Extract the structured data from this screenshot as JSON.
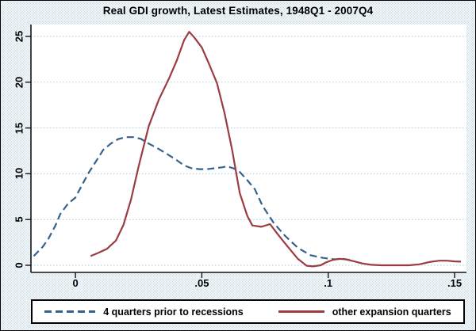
{
  "chart_data": {
    "type": "line",
    "title": "Real GDI growth, Latest Estimates, 1948Q1 - 2007Q4",
    "xlabel": "",
    "ylabel": "",
    "grid": "horizontal-dotted",
    "legend_position": "bottom-box",
    "xlim": [
      -0.0176,
      0.1547
    ],
    "ylim": [
      -0.78,
      26.3
    ],
    "xticks": [
      {
        "value": 0.0,
        "label": "0"
      },
      {
        "value": 0.05,
        "label": ".05"
      },
      {
        "value": 0.1,
        "label": ".1"
      },
      {
        "value": 0.15,
        "label": ".15"
      }
    ],
    "yticks": [
      {
        "value": 0,
        "label": "0"
      },
      {
        "value": 5,
        "label": "5"
      },
      {
        "value": 10,
        "label": "10"
      },
      {
        "value": 15,
        "label": "15"
      },
      {
        "value": 20,
        "label": "20"
      },
      {
        "value": 25,
        "label": "25"
      }
    ],
    "series": [
      {
        "name": "4 quarters prior to recessions",
        "style": "dashed",
        "color": "#35618c",
        "points": [
          [
            -0.0165,
            1.0
          ],
          [
            -0.013,
            2.0
          ],
          [
            -0.0107,
            2.9
          ],
          [
            -0.008,
            4.3
          ],
          [
            -0.006,
            5.6
          ],
          [
            -0.003,
            6.7
          ],
          [
            0.0,
            7.4
          ],
          [
            0.0025,
            8.7
          ],
          [
            0.005,
            10.0
          ],
          [
            0.008,
            11.3
          ],
          [
            0.011,
            12.6
          ],
          [
            0.014,
            13.3
          ],
          [
            0.017,
            13.8
          ],
          [
            0.02,
            14.0
          ],
          [
            0.023,
            14.0
          ],
          [
            0.026,
            13.8
          ],
          [
            0.029,
            13.3
          ],
          [
            0.033,
            12.7
          ],
          [
            0.036,
            12.2
          ],
          [
            0.04,
            11.5
          ],
          [
            0.043,
            10.9
          ],
          [
            0.046,
            10.6
          ],
          [
            0.049,
            10.5
          ],
          [
            0.052,
            10.5
          ],
          [
            0.055,
            10.6
          ],
          [
            0.058,
            10.7
          ],
          [
            0.06,
            10.8
          ],
          [
            0.0625,
            10.6
          ],
          [
            0.065,
            10.2
          ],
          [
            0.068,
            9.3
          ],
          [
            0.071,
            8.3
          ],
          [
            0.074,
            6.5
          ],
          [
            0.0785,
            4.6
          ],
          [
            0.083,
            3.2
          ],
          [
            0.088,
            1.9
          ],
          [
            0.093,
            1.1
          ],
          [
            0.098,
            0.8
          ],
          [
            0.1025,
            0.65
          ],
          [
            0.106,
            0.7
          ],
          [
            0.11,
            0.5
          ]
        ]
      },
      {
        "name": "other expansion quarters",
        "style": "solid",
        "color": "#9a3c42",
        "points": [
          [
            0.006,
            1.0
          ],
          [
            0.009,
            1.35
          ],
          [
            0.0125,
            1.8
          ],
          [
            0.016,
            2.7
          ],
          [
            0.019,
            4.4
          ],
          [
            0.022,
            7.2
          ],
          [
            0.025,
            10.8
          ],
          [
            0.029,
            15.2
          ],
          [
            0.033,
            18.1
          ],
          [
            0.037,
            20.4
          ],
          [
            0.04,
            22.3
          ],
          [
            0.043,
            24.6
          ],
          [
            0.045,
            25.5
          ],
          [
            0.047,
            24.9
          ],
          [
            0.05,
            23.8
          ],
          [
            0.053,
            21.9
          ],
          [
            0.056,
            19.9
          ],
          [
            0.059,
            16.6
          ],
          [
            0.062,
            12.6
          ],
          [
            0.065,
            7.9
          ],
          [
            0.068,
            5.4
          ],
          [
            0.07,
            4.35
          ],
          [
            0.0735,
            4.2
          ],
          [
            0.077,
            4.5
          ],
          [
            0.08,
            3.4
          ],
          [
            0.0835,
            2.2
          ],
          [
            0.088,
            0.7
          ],
          [
            0.0915,
            -0.05
          ],
          [
            0.094,
            -0.12
          ],
          [
            0.097,
            0.0
          ],
          [
            0.099,
            0.3
          ],
          [
            0.102,
            0.6
          ],
          [
            0.1045,
            0.7
          ],
          [
            0.107,
            0.65
          ],
          [
            0.11,
            0.45
          ],
          [
            0.1135,
            0.2
          ],
          [
            0.117,
            0.05
          ],
          [
            0.121,
            0.0
          ],
          [
            0.127,
            0.0
          ],
          [
            0.132,
            0.0
          ],
          [
            0.136,
            0.1
          ],
          [
            0.14,
            0.35
          ],
          [
            0.144,
            0.5
          ],
          [
            0.147,
            0.5
          ],
          [
            0.15,
            0.42
          ],
          [
            0.1525,
            0.4
          ]
        ]
      }
    ],
    "colors": {
      "background_tint": "#e9f1f7",
      "plot_background": "#ffffff",
      "gridline": "#a8cfe0",
      "axis": "#141414",
      "series_dashed": "#35618c",
      "series_solid": "#9a3c42"
    }
  }
}
